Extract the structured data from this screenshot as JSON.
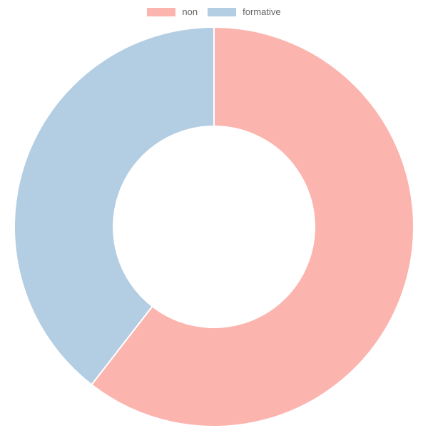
{
  "chart_data": {
    "type": "pie",
    "variant": "doughnut",
    "title": "",
    "legend_position": "top",
    "categories": [
      "non",
      "formative"
    ],
    "values": [
      60.5,
      39.5
    ],
    "colors": [
      "#fbb4ae",
      "#b3cde3"
    ]
  }
}
